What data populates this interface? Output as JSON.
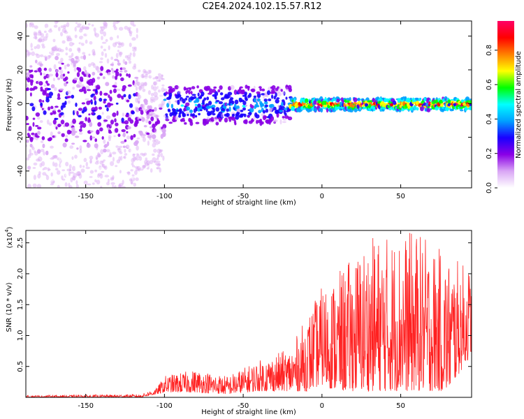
{
  "title": "C2E4.2024.102.15.57.R12",
  "chart_data": [
    {
      "type": "heatmap",
      "xlabel": "Height of straight line (km)",
      "ylabel": "Frequency (Hz)",
      "xlim": [
        -188,
        95
      ],
      "ylim": [
        -50,
        49
      ],
      "xticks": [
        -150,
        -100,
        -50,
        0,
        50
      ],
      "yticks": [
        -40,
        -20,
        0,
        20,
        40
      ],
      "colorbar": {
        "label": "Normalized spectral amplitude",
        "range": [
          0.0,
          0.97
        ],
        "ticks": [
          "0.0",
          "0.2",
          "0.4",
          "0.6",
          "0.8"
        ],
        "colors": [
          "#ffffff",
          "#d9a6f5",
          "#8a00e6",
          "#1a00ff",
          "#00a0ff",
          "#00ffff",
          "#00ff00",
          "#ffff00",
          "#ff8000",
          "#ff0000",
          "#ff0066"
        ]
      },
      "regions": [
        {
          "x": [
            -188,
            -118
          ],
          "freq_spread": [
            -50,
            49
          ],
          "amplitude": [
            0.05,
            0.3
          ],
          "description_level": "broadband weak"
        },
        {
          "x": [
            -118,
            -100
          ],
          "freq_spread": [
            -40,
            20
          ],
          "amplitude": [
            0.05,
            0.2
          ]
        },
        {
          "x": [
            -100,
            -20
          ],
          "freq_spread": [
            -12,
            10
          ],
          "amplitude": [
            0.2,
            0.45
          ]
        },
        {
          "x": [
            -20,
            95
          ],
          "freq_spread": [
            -4,
            3
          ],
          "amplitude": [
            0.4,
            0.95
          ]
        }
      ]
    },
    {
      "type": "line",
      "xlabel": "Height of straight line (km)",
      "ylabel": "SNR (10 * v/v)",
      "scale_label": "(x10",
      "scale_exp": "4",
      "xlim": [
        -188,
        95
      ],
      "ylim": [
        0,
        2.7
      ],
      "xticks": [
        -150,
        -100,
        -50,
        0,
        50
      ],
      "yticks": [
        "0.5",
        "1.0",
        "1.5",
        "2.0",
        "2.5"
      ],
      "series": [
        {
          "color": "#ff2020",
          "envelope": [
            {
              "x": -188,
              "low": 0.0,
              "high": 0.03
            },
            {
              "x": -115,
              "low": 0.0,
              "high": 0.05
            },
            {
              "x": -105,
              "low": 0.05,
              "high": 0.15
            },
            {
              "x": -100,
              "low": 0.08,
              "high": 0.35
            },
            {
              "x": -80,
              "low": 0.08,
              "high": 0.45
            },
            {
              "x": -60,
              "low": 0.05,
              "high": 0.35
            },
            {
              "x": -40,
              "low": 0.1,
              "high": 0.6
            },
            {
              "x": -20,
              "low": 0.1,
              "high": 0.8
            },
            {
              "x": -10,
              "low": 0.1,
              "high": 1.3
            },
            {
              "x": 0,
              "low": 0.2,
              "high": 1.8
            },
            {
              "x": 10,
              "low": 0.1,
              "high": 2.0
            },
            {
              "x": 30,
              "low": 0.1,
              "high": 2.6
            },
            {
              "x": 60,
              "low": 0.1,
              "high": 2.7
            },
            {
              "x": 80,
              "low": 0.1,
              "high": 2.3
            },
            {
              "x": 95,
              "low": 0.7,
              "high": 2.1
            }
          ]
        }
      ]
    }
  ]
}
